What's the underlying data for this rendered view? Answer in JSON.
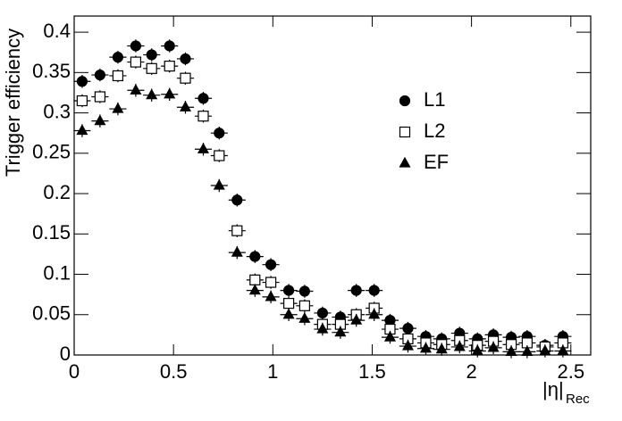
{
  "chart_data": {
    "type": "scatter",
    "y_label": "Trigger efficiency",
    "x_label": "|η|",
    "x_label_sub": "Rec",
    "x": [
      0.04,
      0.13,
      0.22,
      0.31,
      0.39,
      0.48,
      0.56,
      0.65,
      0.73,
      0.82,
      0.91,
      0.99,
      1.08,
      1.16,
      1.25,
      1.34,
      1.42,
      1.51,
      1.59,
      1.68,
      1.77,
      1.85,
      1.94,
      2.03,
      2.11,
      2.2,
      2.28,
      2.37,
      2.46
    ],
    "xerr": 0.043,
    "yerr": 0.008,
    "series": [
      {
        "name": "L1",
        "marker": "circle",
        "filled": true,
        "color": "#000000",
        "values": [
          0.339,
          0.347,
          0.369,
          0.383,
          0.372,
          0.383,
          0.367,
          0.318,
          0.275,
          0.192,
          0.122,
          0.112,
          0.08,
          0.079,
          0.052,
          0.047,
          0.08,
          0.08,
          0.043,
          0.033,
          0.023,
          0.02,
          0.027,
          0.02,
          0.025,
          0.022,
          0.023,
          0.012,
          0.023
        ]
      },
      {
        "name": "L2",
        "marker": "square",
        "filled": false,
        "color": "#000000",
        "values": [
          0.315,
          0.32,
          0.346,
          0.363,
          0.355,
          0.358,
          0.343,
          0.296,
          0.247,
          0.154,
          0.093,
          0.09,
          0.064,
          0.061,
          0.038,
          0.038,
          0.05,
          0.058,
          0.032,
          0.02,
          0.015,
          0.013,
          0.018,
          0.012,
          0.017,
          0.013,
          0.015,
          0.01,
          0.015
        ]
      },
      {
        "name": "EF",
        "marker": "triangle",
        "filled": true,
        "color": "#000000",
        "values": [
          0.278,
          0.29,
          0.305,
          0.328,
          0.322,
          0.323,
          0.307,
          0.255,
          0.21,
          0.127,
          0.08,
          0.072,
          0.05,
          0.045,
          0.032,
          0.028,
          0.043,
          0.05,
          0.022,
          0.011,
          0.008,
          0.007,
          0.01,
          0.005,
          0.009,
          0.004,
          0.004,
          0.005,
          0.005
        ]
      }
    ],
    "xlim": [
      0,
      2.6
    ],
    "ylim": [
      0,
      0.42
    ],
    "xticks": [
      0,
      0.5,
      1,
      1.5,
      2,
      2.5
    ],
    "yticks": [
      0,
      0.05,
      0.1,
      0.15,
      0.2,
      0.25,
      0.3,
      0.35,
      0.4
    ]
  }
}
